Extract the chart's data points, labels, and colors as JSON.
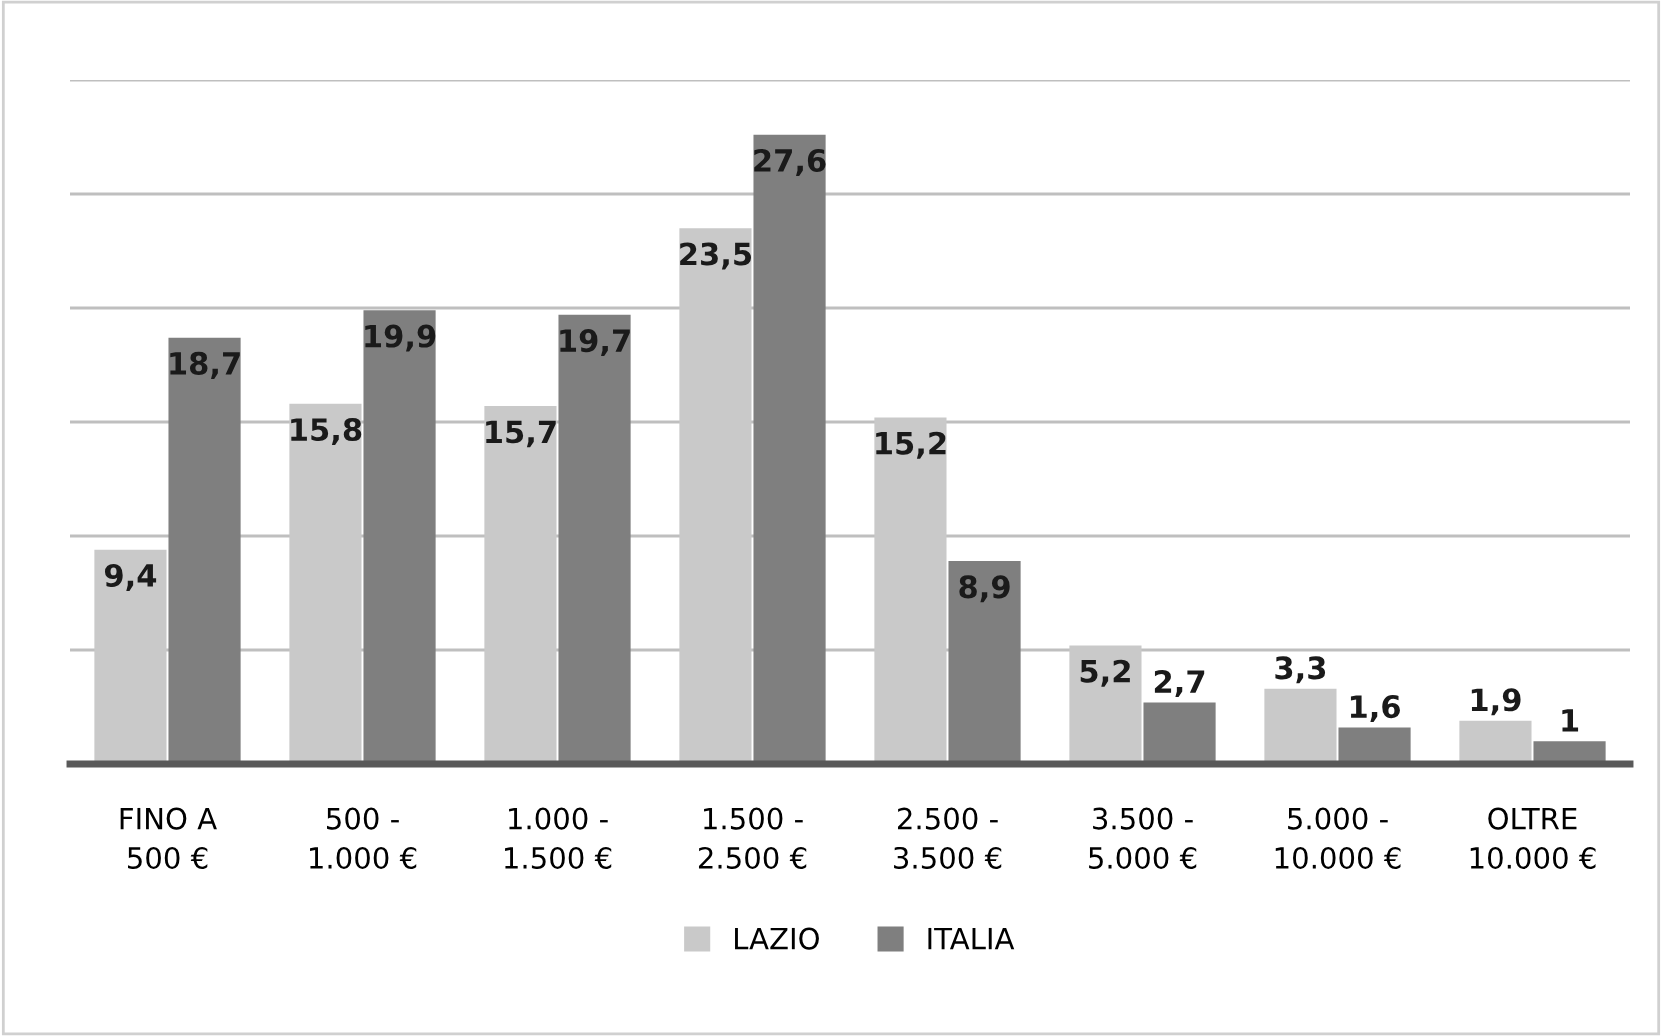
{
  "chart_data": {
    "type": "bar",
    "categories": [
      "FINO A\n500 €",
      "500 -\n1.000 €",
      "1.000 -\n1.500 €",
      "1.500 -\n2.500 €",
      "2.500 -\n3.500 €",
      "3.500 -\n5.000 €",
      "5.000 -\n10.000 €",
      "OLTRE\n10.000 €"
    ],
    "series": [
      {
        "name": "LAZIO",
        "color": "#c9c9c9",
        "values": [
          9.4,
          15.8,
          15.7,
          23.5,
          15.2,
          5.2,
          3.3,
          1.9
        ],
        "value_labels": [
          "9,4",
          "15,8",
          "15,7",
          "23,5",
          "15,2",
          "5,2",
          "3,3",
          "1,9"
        ]
      },
      {
        "name": "ITALIA",
        "color": "#7f7f7f",
        "values": [
          18.7,
          19.9,
          19.7,
          27.6,
          8.9,
          2.7,
          1.6,
          1
        ],
        "value_labels": [
          "18,7",
          "19,9",
          "19,7",
          "27,6",
          "8,9",
          "2,7",
          "1,6",
          "1"
        ]
      }
    ],
    "ylim": [
      0,
      30
    ],
    "yticks": [
      {
        "value": 0,
        "label": null
      },
      {
        "value": 5,
        "label": null
      },
      {
        "value": 10,
        "label": null
      },
      {
        "value": 15,
        "label": null
      },
      {
        "value": 20,
        "label": null
      },
      {
        "value": 25,
        "label": null
      },
      {
        "value": 30,
        "label": null
      }
    ],
    "tick_labels": "x",
    "grid": "y",
    "legend": "bottom"
  }
}
